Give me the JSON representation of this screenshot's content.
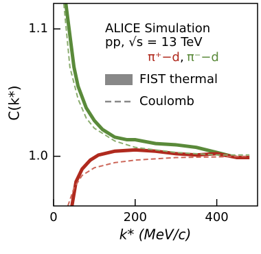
{
  "chart_data": {
    "type": "line",
    "xlabel": "k* (MeV/c)",
    "ylabel": "C(k*)",
    "annotations": [
      "ALICE Simulation",
      "pp, √s = 13 TeV"
    ],
    "legend": {
      "particles": [
        {
          "label": "π⁺−d",
          "color": "#b02a1e"
        },
        {
          "label": "π⁻−d",
          "color": "#5a8a3a"
        }
      ],
      "separator": ",",
      "styles": [
        {
          "label": "FIST thermal",
          "dashed": false
        },
        {
          "label": "Coulomb",
          "dashed": true
        }
      ],
      "color": "#888888"
    },
    "xlim": [
      0,
      500
    ],
    "ylim": [
      0.961,
      1.12
    ],
    "xticks": [
      0,
      200,
      400
    ],
    "yticks": [
      {
        "value": 1.0,
        "label": "1.0"
      },
      1.1
    ],
    "series": [
      {
        "color": "#5a8a3a",
        "dashed": false,
        "x": [
          30,
          40,
          50,
          60,
          80,
          100,
          120,
          150,
          180,
          200,
          250,
          300,
          350,
          400,
          450,
          480
        ],
        "values": [
          1.12,
          1.095,
          1.07,
          1.055,
          1.038,
          1.028,
          1.021,
          1.015,
          1.013,
          1.013,
          1.01,
          1.009,
          1.007,
          1.003,
          0.999,
          0.999
        ]
      },
      {
        "color": "#b02a1e",
        "dashed": false,
        "x": [
          45,
          55,
          70,
          90,
          110,
          150,
          200,
          250,
          300,
          350,
          400,
          450,
          480
        ],
        "values": [
          0.961,
          0.98,
          0.99,
          0.997,
          1.001,
          1.004,
          1.005,
          1.004,
          1.002,
          1.001,
          1.002,
          0.999,
          0.999
        ]
      },
      {
        "color": "#8aac6e",
        "dashed": true,
        "x": [
          25,
          40,
          60,
          80,
          100,
          150,
          200,
          300,
          400,
          480
        ],
        "values": [
          1.12,
          1.07,
          1.045,
          1.03,
          1.022,
          1.012,
          1.007,
          1.003,
          1.001,
          1.001
        ]
      },
      {
        "color": "#cc6659",
        "dashed": true,
        "x": [
          35,
          50,
          70,
          100,
          150,
          200,
          300,
          400,
          480
        ],
        "values": [
          0.961,
          0.975,
          0.985,
          0.991,
          0.995,
          0.997,
          0.999,
          0.9995,
          1.0
        ]
      }
    ]
  }
}
